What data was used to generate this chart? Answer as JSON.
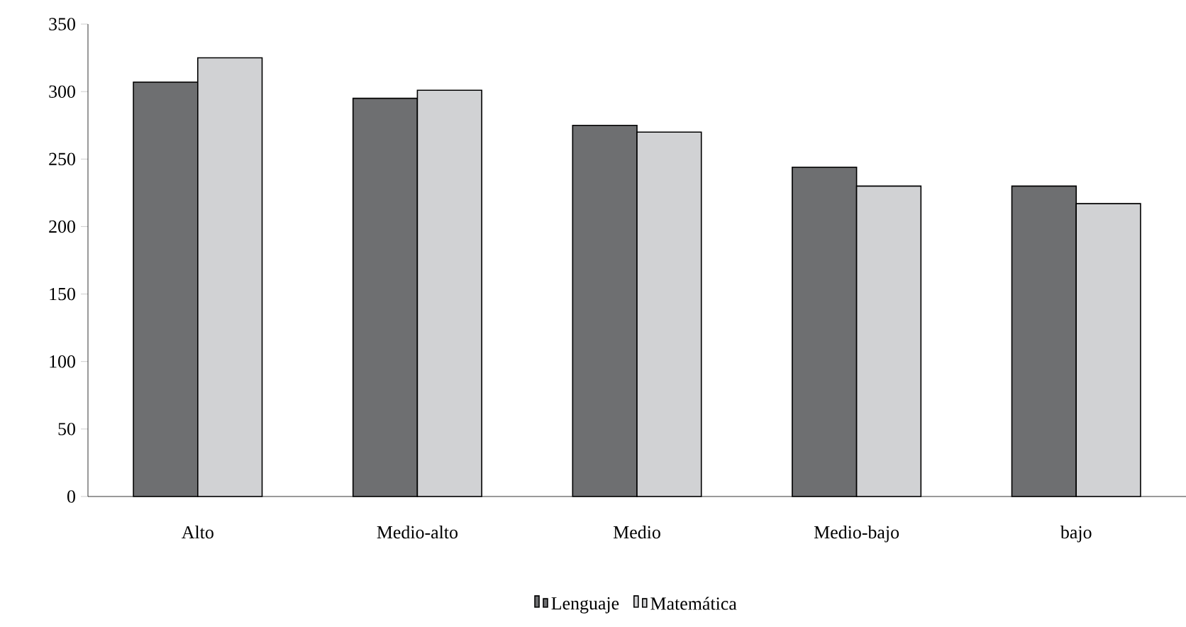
{
  "chart_data": {
    "type": "bar",
    "categories": [
      "Alto",
      "Medio-alto",
      "Medio",
      "Medio-bajo",
      "bajo"
    ],
    "series": [
      {
        "name": "Lenguaje",
        "color": "#6e6f71",
        "values": [
          307,
          295,
          275,
          244,
          230
        ]
      },
      {
        "name": "Matemática",
        "color": "#d1d2d4",
        "values": [
          325,
          301,
          270,
          230,
          217
        ]
      }
    ],
    "ylim": [
      0,
      350
    ],
    "yticks": [
      0,
      50,
      100,
      150,
      200,
      250,
      300,
      350
    ],
    "grid": false,
    "legend": "bottom"
  }
}
